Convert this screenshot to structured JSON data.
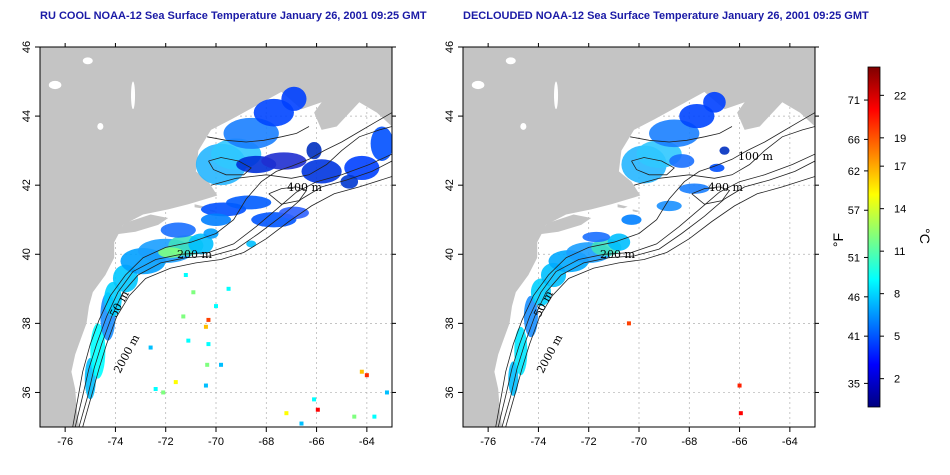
{
  "panels": [
    {
      "title": "RU COOL NOAA-12 Sea Surface Temperature January 26, 2001 09:25 GMT",
      "mode": "raw",
      "contour_labels": [
        "200 m",
        "400 m",
        "2000 m",
        "50 m"
      ]
    },
    {
      "title": "DECLOUDED NOAA-12 Sea Surface Temperature January 26, 2001 09:25 GMT",
      "mode": "declouded",
      "contour_labels": [
        "200 m",
        "400 m",
        "2000 m",
        "100 m",
        "50 m"
      ]
    }
  ],
  "axes": {
    "lon_ticks": [
      "-76",
      "-74",
      "-72",
      "-70",
      "-68",
      "-66",
      "-64"
    ],
    "lat_ticks": [
      "36",
      "38",
      "40",
      "42",
      "44",
      "46"
    ],
    "lon_range": [
      -77,
      -63
    ],
    "lat_range": [
      35,
      46
    ]
  },
  "colorbar": {
    "fahrenheit_label": "°F",
    "celsius_label": "°C",
    "fahrenheit_ticks": [
      "35",
      "41",
      "46",
      "51",
      "57",
      "62",
      "66",
      "71"
    ],
    "celsius_ticks": [
      "2",
      "5",
      "8",
      "11",
      "14",
      "17",
      "19",
      "22"
    ],
    "colors": [
      "#00007f",
      "#0000ff",
      "#007fff",
      "#00ffff",
      "#7fff7f",
      "#ffff00",
      "#ff7f00",
      "#ff0000",
      "#7f0000"
    ]
  },
  "colors": {
    "land": "#c4c4c4",
    "ocean": "#ffffff",
    "grid": "#b0b0b0",
    "contour": "#222222",
    "title": "#1a1aa6"
  }
}
